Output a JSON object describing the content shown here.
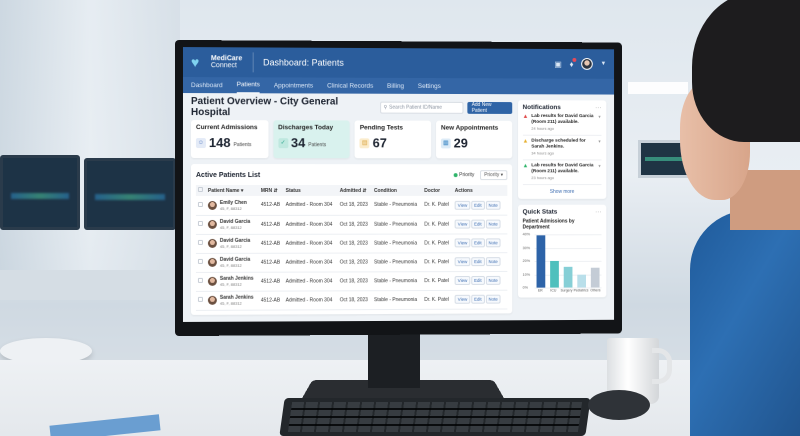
{
  "app": {
    "brand_line1": "MediCare",
    "brand_line2": "Connect",
    "page_heading": "Dashboard: Patients",
    "icons": {
      "logo": "heart-pulse-icon",
      "messages": "message-icon",
      "notifications": "bell-icon",
      "avatar": "user-avatar",
      "dropdown": "chevron-down-icon"
    }
  },
  "nav": {
    "items": [
      {
        "label": "Dashboard",
        "active": false
      },
      {
        "label": "Patients",
        "active": true
      },
      {
        "label": "Appointments",
        "active": false
      },
      {
        "label": "Clinical Records",
        "active": false
      },
      {
        "label": "Billing",
        "active": false
      },
      {
        "label": "Settings",
        "active": false
      }
    ]
  },
  "overview": {
    "title": "Patient Overview - City General Hospital",
    "search_placeholder": "Search Patient ID/Name",
    "add_button": "Add New Patient"
  },
  "stats": [
    {
      "label": "Current Admissions",
      "value": "148",
      "unit": "Patients",
      "icon": "users-icon",
      "icon_color": "#5b7fc4",
      "icon_bg": "#e4ebf7"
    },
    {
      "label": "Discharges Today",
      "value": "34",
      "unit": "Patients",
      "icon": "user-check-icon",
      "icon_color": "#2fa78f",
      "icon_bg": "#bfe8df"
    },
    {
      "label": "Pending Tests",
      "value": "67",
      "unit": "",
      "icon": "clipboard-icon",
      "icon_color": "#d9a23a",
      "icon_bg": "#fbeccc"
    },
    {
      "label": "New Appointments",
      "value": "29",
      "unit": "",
      "icon": "calendar-icon",
      "icon_color": "#3a86c4",
      "icon_bg": "#dcebf7"
    }
  ],
  "patients_list": {
    "title": "Active Patients List",
    "priority_label": "Priority",
    "priority_select": "Priority",
    "columns": [
      "Patient Name",
      "MRN",
      "Status",
      "Admitted",
      "Condition",
      "Doctor",
      "Actions"
    ],
    "actions": [
      "View",
      "Edit",
      "Note"
    ],
    "rows": [
      {
        "name": "Emily Chen",
        "sub": "45, F, 88312",
        "mrn": "4512-AB",
        "status": "Admitted - Room 304",
        "admitted": "Oct 18, 2023",
        "condition": "Stable - Pneumonia",
        "doctor": "Dr. K. Patel"
      },
      {
        "name": "David Garcia",
        "sub": "45, F, 88312",
        "mrn": "4512-AB",
        "status": "Admitted - Room 304",
        "admitted": "Oct 18, 2023",
        "condition": "Stable - Pneumonia",
        "doctor": "Dr. K. Patel"
      },
      {
        "name": "David Garcia",
        "sub": "45, F, 88312",
        "mrn": "4512-AB",
        "status": "Admitted - Room 304",
        "admitted": "Oct 18, 2023",
        "condition": "Stable - Pneumonia",
        "doctor": "Dr. K. Patel"
      },
      {
        "name": "David Garcia",
        "sub": "45, F, 88312",
        "mrn": "4512-AB",
        "status": "Admitted - Room 304",
        "admitted": "Oct 18, 2023",
        "condition": "Stable - Pneumonia",
        "doctor": "Dr. K. Patel"
      },
      {
        "name": "Sarah Jenkins",
        "sub": "45, F, 88312",
        "mrn": "4512-AB",
        "status": "Admitted - Room 304",
        "admitted": "Oct 18, 2023",
        "condition": "Stable - Pneumonia",
        "doctor": "Dr. K. Patel"
      },
      {
        "name": "Sarah Jenkins",
        "sub": "45, F, 88312",
        "mrn": "4512-AB",
        "status": "Admitted - Room 304",
        "admitted": "Oct 18, 2023",
        "condition": "Stable - Pneumonia",
        "doctor": "Dr. K. Patel"
      }
    ]
  },
  "notifications": {
    "title": "Notifications",
    "more": "···",
    "items": [
      {
        "text": "Lab results for David Garcia (Room 211) available.",
        "time": "24 hours ago",
        "color": "#e04a4a"
      },
      {
        "text": "Discharge scheduled for Sarah Jenkins.",
        "time": "34 hours ago",
        "color": "#e6b030"
      },
      {
        "text": "Lab results for David Garcia (Room 211) available.",
        "time": "23 hours ago",
        "color": "#2fb56a"
      }
    ],
    "show_more": "Show more"
  },
  "quick_stats": {
    "title": "Quick Stats",
    "more": "···",
    "subtitle": "Patient Admissions by Department"
  },
  "chart_data": {
    "type": "bar",
    "title": "Patient Admissions by Department",
    "categories": [
      "ER",
      "ICU",
      "Surgery",
      "Pediatrics",
      "Others"
    ],
    "values": [
      39,
      20,
      15.5,
      10,
      14.5
    ],
    "colors": [
      "#2d63a8",
      "#4fc0bd",
      "#86cfd6",
      "#b9dfea",
      "#c4ccd6"
    ],
    "yticks": [
      "40%",
      "30%",
      "20%",
      "10%",
      "0%"
    ],
    "ylim": [
      0,
      40
    ],
    "ylabel": "",
    "xlabel": "",
    "grid": true
  }
}
